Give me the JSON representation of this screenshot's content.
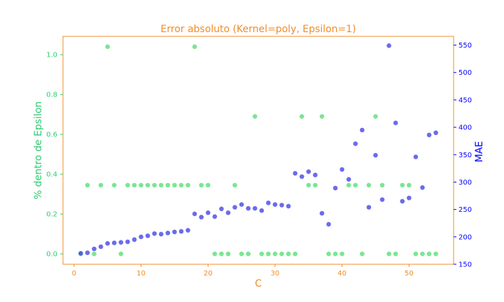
{
  "chart_data": {
    "type": "scatter",
    "title": "Error absoluto (Kernel=poly, Epsilon=1)",
    "xlabel": "C",
    "ylabel_left": "% dentro de Epsilon",
    "ylabel_right": "MAE",
    "xlim": [
      -1.65,
      56.65
    ],
    "ylim_left": [
      -0.052,
      1.092
    ],
    "ylim_right": [
      150,
      566
    ],
    "x_ticks": [
      0,
      10,
      20,
      30,
      40,
      50
    ],
    "y_ticks_left": [
      0.0,
      0.2,
      0.4,
      0.6,
      0.8,
      1.0
    ],
    "y_ticks_right": [
      150,
      200,
      250,
      300,
      350,
      400,
      450,
      500,
      550
    ],
    "grid": false,
    "colors": {
      "frame": "#f28c28",
      "left_axis": "#2ecc71",
      "right_axis": "#0000ff",
      "series_pct": "#4ddd6f",
      "series_mae": "#3a3ae6"
    },
    "series": [
      {
        "axis": "left",
        "x": [
          1,
          2,
          3,
          4,
          5,
          6,
          7,
          8,
          9,
          10,
          11,
          12,
          13,
          14,
          15,
          16,
          17,
          18,
          19,
          20,
          21,
          22,
          23,
          24,
          25,
          26,
          27,
          28,
          29,
          30,
          31,
          32,
          33,
          34,
          35,
          36,
          37,
          38,
          39,
          40,
          41,
          42,
          43,
          44,
          45,
          46,
          47,
          48,
          49,
          50,
          51,
          52,
          53,
          54
        ],
        "values": [
          0.0,
          0.345,
          0.0,
          0.345,
          1.04,
          0.345,
          0.0,
          0.345,
          0.345,
          0.345,
          0.345,
          0.345,
          0.345,
          0.345,
          0.345,
          0.345,
          0.345,
          1.04,
          0.345,
          0.345,
          0.0,
          0.0,
          0.0,
          0.345,
          0.0,
          0.0,
          0.69,
          0.0,
          0.0,
          0.0,
          0.0,
          0.0,
          0.0,
          0.69,
          0.345,
          0.345,
          0.69,
          0.0,
          0.0,
          0.0,
          0.345,
          0.345,
          0.0,
          0.345,
          0.69,
          0.345,
          0.0,
          0.0,
          0.345,
          0.345,
          0.0,
          0.0,
          0.0,
          0.0
        ]
      },
      {
        "axis": "right",
        "x": [
          1,
          2,
          3,
          4,
          5,
          6,
          7,
          8,
          9,
          10,
          11,
          12,
          13,
          14,
          15,
          16,
          17,
          18,
          19,
          20,
          21,
          22,
          23,
          24,
          25,
          26,
          27,
          28,
          29,
          30,
          31,
          32,
          33,
          34,
          35,
          36,
          37,
          38,
          39,
          40,
          41,
          42,
          43,
          44,
          45,
          46,
          47,
          48,
          49,
          50,
          51,
          52,
          53,
          54
        ],
        "values": [
          170,
          171,
          178,
          182,
          188,
          189,
          190,
          191,
          195,
          200,
          202,
          206,
          205,
          207,
          209,
          210,
          212,
          242,
          236,
          244,
          237,
          251,
          244,
          254,
          259,
          252,
          252,
          248,
          262,
          259,
          258,
          256,
          316,
          310,
          319,
          313,
          243,
          223,
          289,
          323,
          305,
          370,
          395,
          254,
          349,
          268,
          549,
          408,
          265,
          271,
          346,
          290,
          386,
          390
        ]
      }
    ]
  }
}
